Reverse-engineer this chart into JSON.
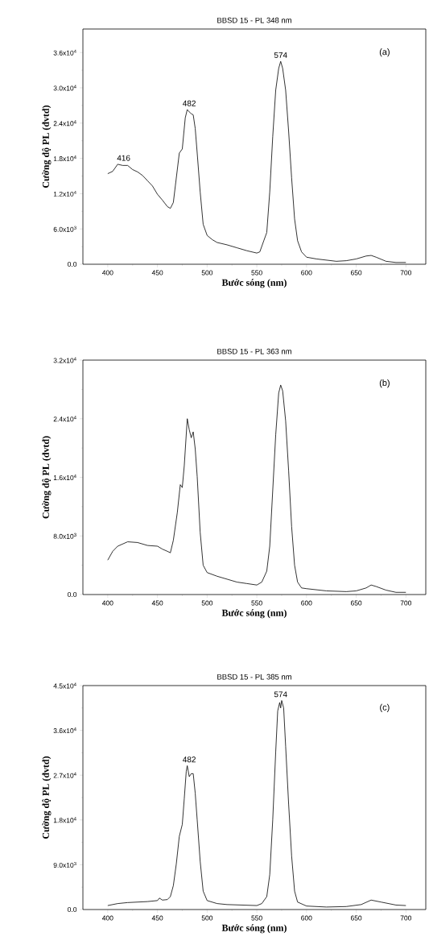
{
  "chart_data": [
    {
      "type": "line",
      "title": "BBSD 15 - PL 348 nm",
      "xlabel": "Bước sóng (nm)",
      "ylabel": "Cường độ PL (đvtđ)",
      "color": "#000000",
      "x": [
        400,
        405,
        410,
        415,
        420,
        425,
        430,
        435,
        440,
        445,
        450,
        455,
        460,
        463,
        466,
        468,
        472,
        475,
        478,
        480,
        482,
        484,
        486,
        488,
        490,
        493,
        496,
        500,
        505,
        510,
        520,
        530,
        540,
        550,
        553,
        557,
        560,
        563,
        566,
        569,
        572,
        574,
        576,
        579,
        582,
        585,
        588,
        591,
        595,
        600,
        610,
        620,
        630,
        640,
        650,
        660,
        665,
        670,
        680,
        690,
        700
      ],
      "values": [
        15400,
        15800,
        17000,
        16800,
        16800,
        16100,
        15700,
        15100,
        14200,
        13300,
        11900,
        10900,
        9800,
        9500,
        10500,
        13300,
        18900,
        19600,
        24900,
        26300,
        25900,
        25600,
        25400,
        23100,
        18900,
        12300,
        6800,
        4900,
        4200,
        3700,
        3300,
        2800,
        2300,
        1900,
        2100,
        4000,
        5400,
        12300,
        21700,
        29600,
        33300,
        34500,
        33300,
        29600,
        22600,
        14700,
        7700,
        4000,
        2100,
        1200,
        900,
        700,
        500,
        600,
        900,
        1400,
        1500,
        1200,
        500,
        300,
        300
      ],
      "xlim": [
        375,
        720
      ],
      "xticks": [
        400,
        450,
        500,
        550,
        600,
        650,
        700
      ],
      "ylim": [
        0,
        40000
      ],
      "yticks": [
        {
          "value": 0,
          "label": "0.0"
        },
        {
          "value": 6000,
          "label": "6.0x10$^{3}$"
        },
        {
          "value": 12000,
          "label": "1.2x10$^{4}$"
        },
        {
          "value": 18000,
          "label": "1.8x10$^{4}$"
        },
        {
          "value": 24000,
          "label": "2.4x10$^{4}$"
        },
        {
          "value": 30000,
          "label": "3.0x10$^{4}$"
        },
        {
          "value": 36000,
          "label": "3.6x10$^{4}$"
        }
      ],
      "annotations": [
        "(a)",
        {
          "text": "416",
          "x": 416,
          "y": 17000
        },
        {
          "text": "482",
          "x": 482,
          "y": 26300
        },
        {
          "text": "574",
          "x": 574,
          "y": 34500
        }
      ]
    },
    {
      "type": "line",
      "title": "BBSD 15 - PL 363 nm",
      "xlabel": "Bước sóng (nm)",
      "ylabel": "Cường độ PL (đvtđ)",
      "color": "#000000",
      "x": [
        400,
        405,
        410,
        420,
        430,
        440,
        450,
        455,
        460,
        463,
        466,
        470,
        473,
        475,
        477,
        480,
        482,
        484,
        486,
        488,
        490,
        493,
        496,
        500,
        510,
        520,
        530,
        540,
        550,
        555,
        560,
        563,
        566,
        569,
        572,
        574,
        576,
        579,
        582,
        585,
        588,
        591,
        595,
        600,
        620,
        640,
        650,
        660,
        665,
        670,
        680,
        690,
        700
      ],
      "values": [
        4700,
        5900,
        6600,
        7200,
        7100,
        6700,
        6600,
        6200,
        5900,
        5700,
        7400,
        11200,
        15000,
        14600,
        17600,
        24000,
        22500,
        21400,
        22200,
        19900,
        16100,
        8500,
        4000,
        3000,
        2500,
        2100,
        1700,
        1500,
        1300,
        1700,
        3200,
        6600,
        14200,
        21800,
        27500,
        28600,
        27800,
        23700,
        16900,
        9300,
        4000,
        1700,
        900,
        800,
        500,
        400,
        500,
        900,
        1300,
        1100,
        600,
        300,
        300
      ],
      "xlim": [
        375,
        720
      ],
      "xticks": [
        400,
        450,
        500,
        550,
        600,
        650,
        700
      ],
      "ylim": [
        0,
        32000
      ],
      "yticks": [
        {
          "value": 0,
          "label": "0.0"
        },
        {
          "value": 8000,
          "label": "8.0x10$^{3}$"
        },
        {
          "value": 16000,
          "label": "1.6x10$^{4}$"
        },
        {
          "value": 24000,
          "label": "2.4x10$^{4}$"
        },
        {
          "value": 32000,
          "label": "3.2x10$^{4}$"
        }
      ],
      "annotations": [
        "(b)"
      ]
    },
    {
      "type": "line",
      "title": "BBSD 15 - PL 385 nm",
      "xlabel": "Bước sóng (nm)",
      "ylabel": "Cường độ PL (đvtđ)",
      "color": "#000000",
      "x": [
        400,
        410,
        420,
        430,
        440,
        450,
        452,
        455,
        460,
        463,
        466,
        469,
        472,
        475,
        477,
        479,
        480,
        482,
        484,
        486,
        488,
        490,
        493,
        496,
        500,
        510,
        520,
        550,
        555,
        560,
        563,
        566,
        569,
        571,
        573,
        574,
        575,
        577,
        579,
        582,
        585,
        588,
        591,
        600,
        620,
        640,
        655,
        665,
        675,
        690,
        700
      ],
      "values": [
        800,
        1200,
        1400,
        1500,
        1600,
        1800,
        2300,
        1900,
        2000,
        2600,
        4800,
        9200,
        14700,
        17100,
        22300,
        27800,
        28900,
        26700,
        27300,
        27300,
        23400,
        18000,
        9700,
        3700,
        1800,
        1200,
        1000,
        800,
        1200,
        2600,
        7000,
        18000,
        31700,
        39900,
        41600,
        40500,
        42000,
        40500,
        32800,
        21200,
        10800,
        3700,
        1500,
        700,
        500,
        600,
        1000,
        1900,
        1500,
        900,
        800
      ],
      "xlim": [
        375,
        720
      ],
      "xticks": [
        400,
        450,
        500,
        550,
        600,
        650,
        700
      ],
      "ylim": [
        0,
        45000
      ],
      "yticks": [
        {
          "value": 0,
          "label": "0.0"
        },
        {
          "value": 9000,
          "label": "9.0x10$^{3}$"
        },
        {
          "value": 18000,
          "label": "1.8x10$^{4}$"
        },
        {
          "value": 27000,
          "label": "2.7x10$^{4}$"
        },
        {
          "value": 36000,
          "label": "3.6x10$^{4}$"
        },
        {
          "value": 45000,
          "label": "4.5x10$^{4}$"
        }
      ],
      "annotations": [
        "(c)",
        {
          "text": "482",
          "x": 482,
          "y": 28900
        },
        {
          "text": "574",
          "x": 574,
          "y": 42000
        }
      ]
    }
  ]
}
